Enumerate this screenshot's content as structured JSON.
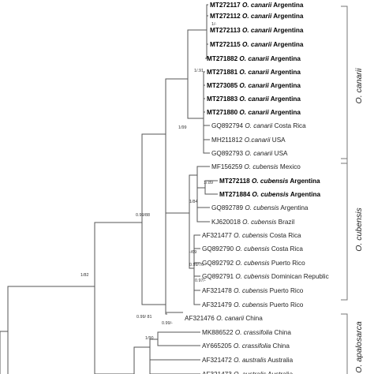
{
  "taxa": [
    {
      "acc": "MT272117",
      "sp": "O. canarii",
      "loc": "Argentina",
      "bold": true
    },
    {
      "acc": "MT272112",
      "sp": "O. canarii",
      "loc": "Argentina",
      "bold": true
    },
    {
      "acc": "MT272113",
      "sp": "O. canarii",
      "loc": "Argentina",
      "bold": true
    },
    {
      "acc": "MT272115",
      "sp": "O. canarii",
      "loc": "Argentina",
      "bold": true
    },
    {
      "acc": "MT271882",
      "sp": "O. canarii",
      "loc": "Argentina",
      "bold": true
    },
    {
      "acc": "MT271881",
      "sp": "O. canarii",
      "loc": "Argentina",
      "bold": true
    },
    {
      "acc": "MT273085",
      "sp": "O. canarii",
      "loc": "Argentina",
      "bold": true
    },
    {
      "acc": "MT271883",
      "sp": "O. canarii",
      "loc": "Argentina",
      "bold": true
    },
    {
      "acc": "MT271880",
      "sp": "O. canarii",
      "loc": "Argentina",
      "bold": true
    },
    {
      "acc": "GQ892794",
      "sp": "O. canarii",
      "loc": "Costa Rica",
      "bold": false
    },
    {
      "acc": "MH211812",
      "sp": "O.canarii",
      "loc": "USA",
      "bold": false
    },
    {
      "acc": "GQ892793",
      "sp": "O. canarii",
      "loc": "USA",
      "bold": false
    },
    {
      "acc": "MF156259",
      "sp": "O. cubensis",
      "loc": "Mexico",
      "bold": false
    },
    {
      "acc": "MT272118",
      "sp": "O. cubensis",
      "loc": "Argentina",
      "bold": true
    },
    {
      "acc": "MT271884",
      "sp": "O. cubensis",
      "loc": "Argentina",
      "bold": true
    },
    {
      "acc": "GQ892789",
      "sp": "O. cubensis",
      "loc": "Argentina",
      "bold": false
    },
    {
      "acc": "KJ620018",
      "sp": "O. cubensis",
      "loc": "Brazil",
      "bold": false
    },
    {
      "acc": "AF321477",
      "sp": "O. cubensis",
      "loc": "Costa Rica",
      "bold": false
    },
    {
      "acc": "GQ892790",
      "sp": "O. cubensis",
      "loc": "Costa Rica",
      "bold": false
    },
    {
      "acc": "GQ892792",
      "sp": "O. cubensis",
      "loc": "Puerto Rico",
      "bold": false
    },
    {
      "acc": "GQ892791",
      "sp": "O. cubensis",
      "loc": "Dominican Republic",
      "bold": false
    },
    {
      "acc": "AF321478",
      "sp": "O. cubensis",
      "loc": "Puerto Rico",
      "bold": false
    },
    {
      "acc": "AF321479",
      "sp": "O. cubensis",
      "loc": "Puerto Rico",
      "bold": false
    },
    {
      "acc": "AF321476",
      "sp": "O. canarii",
      "loc": "China",
      "bold": false
    },
    {
      "acc": "MK886522",
      "sp": "O. crassifolia",
      "loc": "China",
      "bold": false
    },
    {
      "acc": "AY665205",
      "sp": "O. crassifolia",
      "loc": "China",
      "bold": false
    },
    {
      "acc": "AF321472",
      "sp": "O. australis",
      "loc": "Australia",
      "bold": false
    },
    {
      "acc": "AF321473",
      "sp": "O. australis",
      "loc": "Australia",
      "bold": false
    }
  ],
  "support": {
    "s_1a": "1/-",
    "s_1_91": "1/.91",
    "s_1_99": "1/99",
    "s_1_89": "1/.89",
    "s_1_84": "1/84",
    "s_099_88": "0.99/88",
    "s_m_69": "-/69",
    "s_099_76": "0.99/76",
    "s_097m": "0.97/-",
    "s_1_82": "1/82",
    "s_099_81": "0.99/ 81",
    "s_099m": "0.99/-",
    "s_1_90": "1/90"
  },
  "clades": {
    "canarii": "O. canarii",
    "cubensis": "O. cubensis",
    "apalosarca": "O. apalosarca"
  }
}
